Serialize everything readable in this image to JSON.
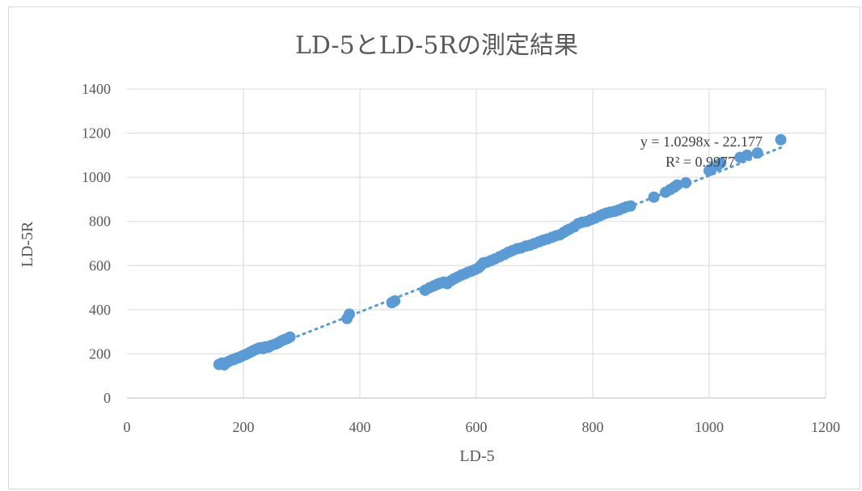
{
  "chart_data": {
    "type": "scatter",
    "title": "LD-5とLD-5Rの測定結果",
    "xlabel": "LD-5",
    "ylabel": "LD-5R",
    "xlim": [
      0,
      1200
    ],
    "ylim": [
      0,
      1400
    ],
    "x_ticks": [
      "0",
      "200",
      "400",
      "600",
      "800",
      "1000",
      "1200"
    ],
    "y_ticks": [
      "0",
      "200",
      "400",
      "600",
      "800",
      "1000",
      "1200",
      "1400"
    ],
    "grid": true,
    "legend": "none",
    "marker_color": "#5b9bd5",
    "trendline": {
      "type": "linear",
      "slope": 1.0298,
      "intercept": -22.177,
      "equation": "y = 1.0298x - 22.177",
      "r_squared": "R² = 0.9977",
      "style": "dotted"
    },
    "x": [
      158,
      163,
      167,
      171,
      175,
      180,
      184,
      188,
      192,
      196,
      200,
      205,
      210,
      214,
      218,
      222,
      226,
      230,
      234,
      238,
      243,
      248,
      255,
      260,
      265,
      270,
      276,
      280,
      378,
      382,
      455,
      460,
      512,
      520,
      527,
      533,
      538,
      544,
      550,
      557,
      562,
      568,
      574,
      580,
      586,
      592,
      598,
      604,
      608,
      612,
      618,
      625,
      632,
      640,
      648,
      655,
      662,
      670,
      677,
      685,
      692,
      700,
      708,
      715,
      722,
      730,
      737,
      744,
      750,
      755,
      760,
      768,
      775,
      782,
      790,
      797,
      804,
      812,
      818,
      824,
      830,
      838,
      845,
      852,
      858,
      865,
      905,
      925,
      933,
      940,
      945,
      960,
      1000,
      1005,
      1015,
      1020,
      1053,
      1065,
      1083,
      1123
    ],
    "y": [
      152,
      158,
      150,
      160,
      166,
      172,
      175,
      180,
      183,
      188,
      193,
      198,
      205,
      210,
      216,
      220,
      225,
      228,
      224,
      232,
      230,
      238,
      244,
      250,
      258,
      264,
      270,
      276,
      360,
      380,
      432,
      440,
      488,
      500,
      508,
      515,
      520,
      525,
      518,
      532,
      540,
      548,
      556,
      562,
      570,
      575,
      582,
      590,
      600,
      612,
      615,
      622,
      630,
      640,
      650,
      660,
      668,
      676,
      680,
      688,
      692,
      700,
      708,
      715,
      720,
      728,
      735,
      740,
      750,
      758,
      765,
      775,
      790,
      796,
      800,
      808,
      815,
      825,
      832,
      838,
      842,
      846,
      852,
      860,
      866,
      870,
      910,
      932,
      944,
      955,
      965,
      975,
      1030,
      1040,
      1055,
      1065,
      1090,
      1100,
      1110,
      1170
    ]
  }
}
